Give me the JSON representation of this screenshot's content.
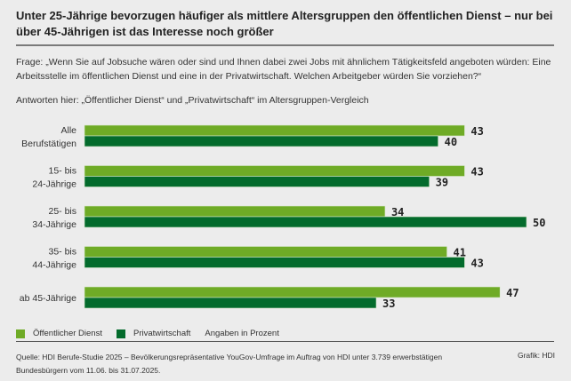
{
  "title": "Unter 25-Jährige bevorzugen häufiger als mittlere Altersgruppen den öffentlichen Dienst – nur bei über 45-Jährigen ist das Interesse noch größer",
  "question": "Frage: „Wenn Sie auf Jobsuche wären oder sind und Ihnen dabei zwei Jobs mit ähnlichem Tätigkeitsfeld angeboten würden: Eine Arbeitsstelle im öffentlichen Dienst und eine in der Privatwirtschaft. Welchen Arbeitgeber würden Sie vorziehen?“",
  "answers_note": "Antworten hier: „Öffentlicher Dienst“ und „Privatwirtschaft“ im Altersgruppen-Vergleich",
  "legend": {
    "items": [
      {
        "label": "Öffentlicher Dienst",
        "color": "#6fab26"
      },
      {
        "label": "Privatwirtschaft",
        "color": "#036b2c"
      }
    ],
    "unit_note": "Angaben in Prozent"
  },
  "source": "Quelle: HDI Berufe-Studie 2025 – Bevölkerungsrepräsentative YouGov-Umfrage im Auftrag von HDI unter 3.739 erwerbstätigen Bundesbürgern vom 11.06. bis 31.07.2025.",
  "credit": "Grafik: HDI",
  "chart_data": {
    "type": "bar",
    "orientation": "horizontal",
    "title": "Unter 25-Jährige bevorzugen häufiger als mittlere Altersgruppen den öffentlichen Dienst – nur bei über 45-Jährigen ist das Interesse noch größer",
    "xlabel": "",
    "ylabel": "",
    "unit": "Prozent",
    "categories": [
      [
        "Alle",
        "Berufstätigen"
      ],
      [
        "15- bis",
        "24-Jährige"
      ],
      [
        "25- bis",
        "34-Jährige"
      ],
      [
        "35- bis",
        "44-Jährige"
      ],
      [
        "ab 45-Jährige"
      ]
    ],
    "series": [
      {
        "name": "Öffentlicher Dienst",
        "color": "#6fab26",
        "values": [
          43,
          43,
          34,
          41,
          47
        ]
      },
      {
        "name": "Privatwirtschaft",
        "color": "#036b2c",
        "values": [
          40,
          39,
          50,
          43,
          33
        ]
      }
    ],
    "xlim": [
      0,
      50
    ],
    "grid": false,
    "legend_position": "bottom-left"
  }
}
